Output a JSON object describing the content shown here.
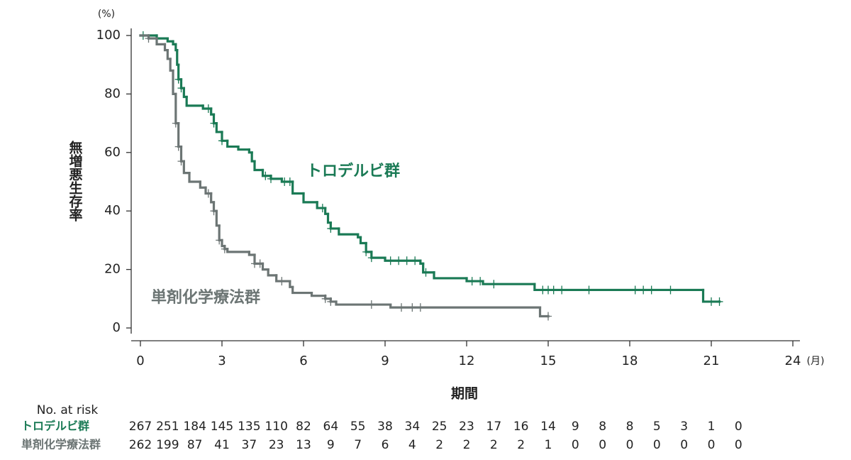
{
  "chart_data": {
    "type": "km",
    "y_unit": "(%)",
    "x_unit": "(月)",
    "ylabel": "無増悪生存率",
    "xlabel": "期間",
    "xlim": [
      0,
      24
    ],
    "xticks": [
      0,
      3,
      6,
      9,
      12,
      15,
      18,
      21,
      24
    ],
    "ylim": [
      0,
      100
    ],
    "yticks": [
      0,
      20,
      40,
      60,
      80,
      100
    ],
    "series": [
      {
        "name": "トロデルビ群",
        "color": "#1a7a55",
        "x": [
          0,
          0.6,
          1.0,
          1.2,
          1.3,
          1.35,
          1.4,
          1.5,
          1.6,
          1.7,
          2.3,
          2.6,
          2.7,
          2.8,
          3.0,
          3.2,
          3.6,
          4.0,
          4.1,
          4.2,
          4.5,
          4.8,
          5.2,
          5.6,
          6.0,
          6.5,
          6.8,
          6.9,
          7.0,
          7.3,
          8.0,
          8.1,
          8.3,
          8.5,
          9.0,
          10.3,
          10.4,
          10.8,
          12.0,
          12.6,
          14.5,
          20.7,
          21.3
        ],
        "values": [
          100,
          99,
          98,
          97,
          95,
          90,
          85,
          82,
          79,
          76,
          75,
          73,
          70,
          67,
          64,
          62,
          61,
          60,
          57,
          54,
          52,
          51,
          50,
          46,
          43,
          41,
          39,
          36,
          34,
          32,
          31,
          29,
          26,
          24,
          23,
          22,
          19,
          17,
          16,
          15,
          13,
          9,
          9
        ],
        "censored": [
          0.1,
          1.4,
          1.5,
          2.5,
          2.7,
          3.0,
          4.6,
          4.8,
          5.3,
          5.5,
          6.7,
          7.0,
          8.3,
          8.5,
          9.2,
          9.5,
          9.8,
          10.1,
          10.5,
          12.2,
          12.5,
          13.0,
          14.8,
          15.0,
          15.2,
          15.5,
          16.5,
          18.2,
          18.5,
          18.8,
          19.5,
          21.0,
          21.3
        ],
        "at_risk": [
          267,
          251,
          184,
          145,
          135,
          110,
          82,
          64,
          55,
          38,
          34,
          25,
          23,
          17,
          16,
          14,
          9,
          8,
          8,
          5,
          3,
          1,
          0
        ]
      },
      {
        "name": "単剤化学療法群",
        "color": "#6c7574",
        "x": [
          0,
          0.3,
          0.6,
          0.9,
          1.0,
          1.1,
          1.2,
          1.3,
          1.4,
          1.5,
          1.6,
          1.8,
          2.2,
          2.4,
          2.6,
          2.7,
          2.8,
          2.9,
          3.0,
          3.1,
          3.2,
          4.0,
          4.2,
          4.5,
          4.7,
          5.0,
          5.5,
          5.6,
          6.3,
          6.8,
          7.0,
          7.2,
          9.2,
          14.7,
          15.0
        ],
        "values": [
          100,
          99,
          97,
          95,
          92,
          88,
          80,
          70,
          62,
          57,
          53,
          50,
          48,
          46,
          43,
          40,
          35,
          30,
          28,
          27,
          26,
          25,
          22,
          20,
          18,
          16,
          14,
          12,
          11,
          10,
          9,
          8,
          7,
          4,
          4
        ],
        "censored": [
          0.3,
          1.3,
          1.4,
          1.5,
          2.5,
          2.7,
          2.9,
          3.1,
          4.2,
          4.4,
          5.2,
          6.8,
          7.0,
          8.5,
          9.6,
          10.0,
          10.3,
          15.0
        ],
        "at_risk": [
          262,
          199,
          87,
          41,
          37,
          23,
          13,
          9,
          7,
          6,
          4,
          2,
          2,
          2,
          2,
          1,
          0,
          0,
          0,
          0,
          0,
          0,
          0
        ]
      }
    ],
    "risk_label": "No. at risk"
  }
}
